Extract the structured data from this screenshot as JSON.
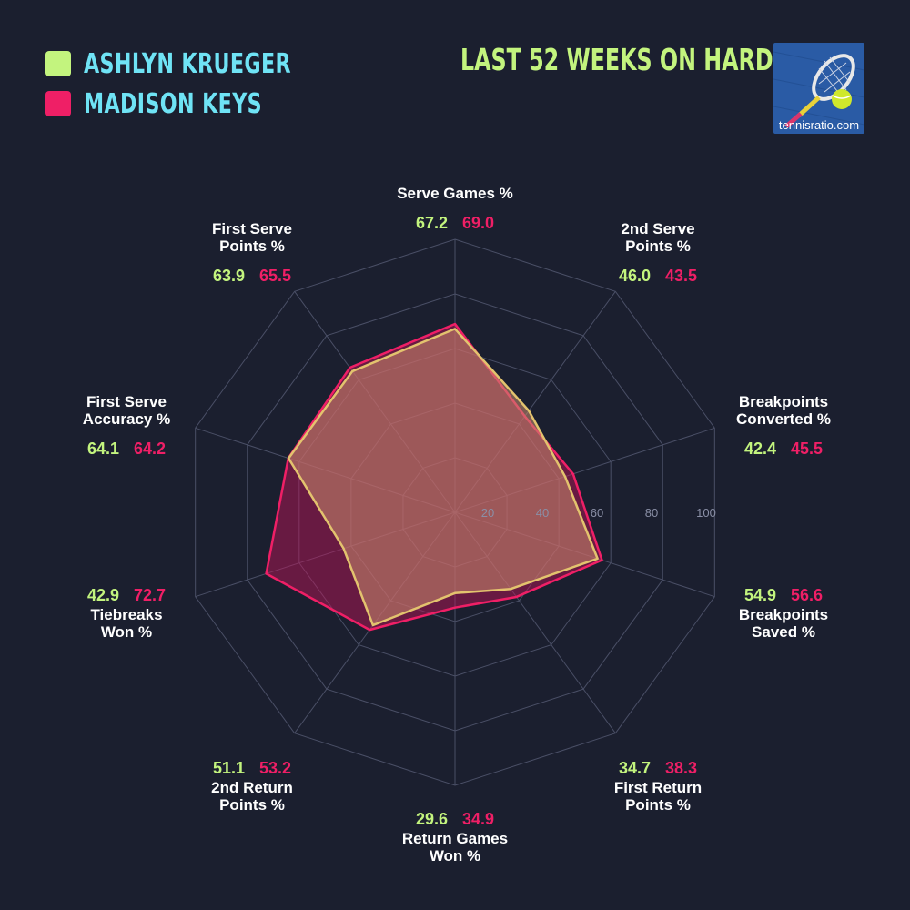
{
  "legend": [
    {
      "name": "ASHLYN KRUEGER",
      "color": "#c3f47e"
    },
    {
      "name": "MADISON KEYS",
      "color": "#ef1f66"
    }
  ],
  "subtitle": "LAST 52 WEEKS ON HARD",
  "logo": {
    "text": "tennisratio.com",
    "icon": "tennis-racket-ball-icon"
  },
  "chart_data": {
    "type": "radar",
    "title": "LAST 52 WEEKS ON HARD",
    "range": [
      0,
      100
    ],
    "ticks": [
      20,
      40,
      60,
      80,
      100
    ],
    "axes": [
      {
        "name": [
          "Serve Games %"
        ]
      },
      {
        "name": [
          "2nd Serve",
          "Points %"
        ]
      },
      {
        "name": [
          "Breakpoints",
          "Converted %"
        ]
      },
      {
        "name": [
          "Breakpoints",
          "Saved %"
        ]
      },
      {
        "name": [
          "First Return",
          "Points %"
        ]
      },
      {
        "name": [
          "Return Games",
          "Won %"
        ]
      },
      {
        "name": [
          "2nd Return",
          "Points %"
        ]
      },
      {
        "name": [
          "Tiebreaks",
          "Won %"
        ]
      },
      {
        "name": [
          "First Serve",
          "Accuracy %"
        ]
      },
      {
        "name": [
          "First Serve",
          "Points %"
        ]
      }
    ],
    "series": [
      {
        "name": "ASHLYN KRUEGER",
        "color": "#c3f47e",
        "values": [
          67.2,
          46.0,
          42.4,
          54.9,
          34.7,
          29.6,
          51.1,
          42.9,
          64.1,
          63.9
        ],
        "labels": [
          "67.2",
          "46.0",
          "42.4",
          "54.9",
          "34.7",
          "29.6",
          "51.1",
          "42.9",
          "64.1",
          "63.9"
        ]
      },
      {
        "name": "MADISON KEYS",
        "color": "#ef1f66",
        "values": [
          69.0,
          43.5,
          45.5,
          56.6,
          38.3,
          34.9,
          53.2,
          72.7,
          64.2,
          65.5
        ],
        "labels": [
          "69.0",
          "43.5",
          "45.5",
          "56.6",
          "38.3",
          "34.9",
          "53.2",
          "72.7",
          "64.2",
          "65.5"
        ]
      }
    ]
  }
}
